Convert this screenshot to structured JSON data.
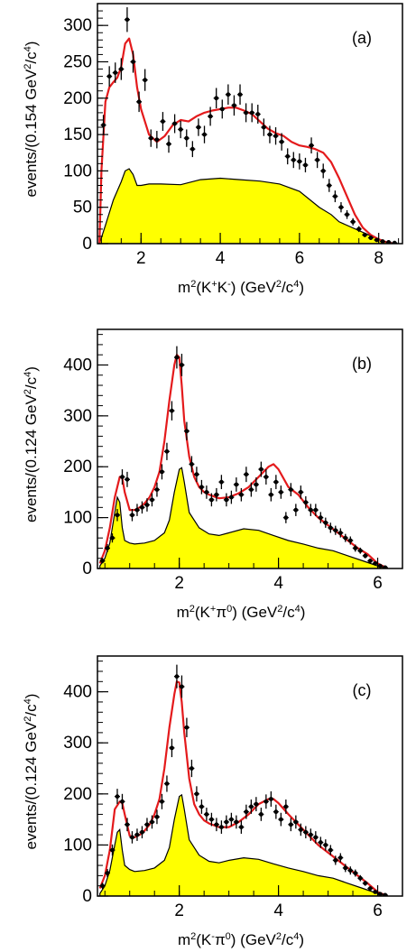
{
  "colors": {
    "fit": "#e41a1c",
    "background_fill": "#ffff00",
    "background_line": "#000000",
    "points": "#000000"
  },
  "chart_data": [
    {
      "type": "line",
      "panel": "(a)",
      "xlabel": {
        "base": "m",
        "sup1": "2",
        "mid": "(K",
        "sup2": "+",
        "mid2": "K",
        "sup3": "-",
        "end": ") (GeV",
        "sup4": "2",
        "end2": "/c",
        "sup5": "4",
        "close": ")"
      },
      "ylabel": {
        "base": "events/(0.154 GeV",
        "sup1": "2",
        "mid": "/c",
        "sup2": "4",
        "close": ")"
      },
      "xlim": [
        0.9,
        8.6
      ],
      "ylim": [
        0,
        330
      ],
      "xticks": [
        2,
        4,
        6,
        8
      ],
      "yticks": [
        0,
        50,
        100,
        150,
        200,
        250,
        300
      ],
      "data_points": {
        "x": [
          1.05,
          1.2,
          1.35,
          1.5,
          1.65,
          1.8,
          1.95,
          2.1,
          2.25,
          2.4,
          2.55,
          2.7,
          2.85,
          3.0,
          3.15,
          3.3,
          3.45,
          3.6,
          3.75,
          3.9,
          4.05,
          4.2,
          4.35,
          4.5,
          4.65,
          4.8,
          4.95,
          5.1,
          5.25,
          5.4,
          5.55,
          5.7,
          5.85,
          6.0,
          6.15,
          6.3,
          6.45,
          6.6,
          6.75,
          6.9,
          7.05,
          7.2,
          7.35,
          7.5,
          7.65,
          7.8,
          7.95,
          8.1,
          8.25,
          8.4
        ],
        "y": [
          163,
          230,
          235,
          240,
          308,
          250,
          195,
          225,
          145,
          143,
          168,
          137,
          165,
          157,
          145,
          130,
          160,
          150,
          175,
          200,
          185,
          205,
          190,
          205,
          180,
          180,
          178,
          160,
          150,
          148,
          140,
          120,
          115,
          113,
          108,
          135,
          115,
          100,
          80,
          65,
          50,
          40,
          30,
          20,
          12,
          8,
          5,
          3,
          2,
          1
        ],
        "err": [
          14,
          14,
          14,
          15,
          17,
          15,
          14,
          15,
          12,
          12,
          13,
          12,
          13,
          12,
          12,
          11,
          12,
          12,
          13,
          14,
          13,
          14,
          14,
          14,
          13,
          13,
          13,
          12,
          12,
          12,
          12,
          11,
          11,
          11,
          10,
          11,
          11,
          10,
          9,
          8,
          7,
          6,
          5,
          4,
          3,
          3,
          2,
          2,
          1,
          1
        ]
      },
      "fit": {
        "x": [
          0.95,
          1.0,
          1.1,
          1.2,
          1.3,
          1.4,
          1.5,
          1.6,
          1.7,
          1.8,
          1.9,
          2.0,
          2.2,
          2.4,
          2.6,
          2.8,
          3.0,
          3.2,
          3.4,
          3.6,
          3.8,
          4.0,
          4.2,
          4.4,
          4.6,
          4.8,
          5.0,
          5.2,
          5.4,
          5.6,
          5.8,
          6.0,
          6.2,
          6.4,
          6.6,
          6.8,
          7.0,
          7.2,
          7.4,
          7.6,
          7.8,
          8.0,
          8.2,
          8.4
        ],
        "y": [
          0,
          100,
          195,
          215,
          222,
          228,
          243,
          275,
          282,
          260,
          215,
          185,
          150,
          140,
          148,
          163,
          170,
          168,
          175,
          180,
          183,
          185,
          187,
          187,
          183,
          178,
          168,
          158,
          152,
          148,
          140,
          135,
          133,
          130,
          125,
          112,
          90,
          65,
          40,
          22,
          12,
          6,
          2,
          0
        ]
      },
      "background": {
        "x": [
          0.95,
          1.1,
          1.3,
          1.5,
          1.6,
          1.7,
          1.8,
          1.9,
          2.0,
          2.2,
          2.5,
          3.0,
          3.5,
          4.0,
          4.5,
          5.0,
          5.5,
          6.0,
          6.5,
          6.8,
          7.0,
          7.5,
          8.0,
          8.2,
          8.4
        ],
        "y": [
          0,
          25,
          60,
          85,
          100,
          103,
          95,
          80,
          80,
          82,
          82,
          81,
          88,
          90,
          88,
          86,
          82,
          72,
          50,
          40,
          30,
          18,
          6,
          2,
          0
        ]
      }
    },
    {
      "type": "line",
      "panel": "(b)",
      "xlabel": {
        "base": "m",
        "sup1": "2",
        "mid": "(K",
        "sup2": "+",
        "mid2": "π",
        "sup3": "0",
        "end": ") (GeV",
        "sup4": "2",
        "end2": "/c",
        "sup5": "4",
        "close": ")"
      },
      "ylabel": {
        "base": "events/(0.124 GeV",
        "sup1": "2",
        "mid": "/c",
        "sup2": "4",
        "close": ")"
      },
      "xlim": [
        0.35,
        6.5
      ],
      "ylim": [
        0,
        470
      ],
      "xticks": [
        2,
        4,
        6
      ],
      "yticks": [
        0,
        100,
        200,
        300,
        400
      ],
      "data_points": {
        "x": [
          0.45,
          0.55,
          0.65,
          0.75,
          0.85,
          0.95,
          1.05,
          1.15,
          1.25,
          1.35,
          1.45,
          1.55,
          1.65,
          1.75,
          1.85,
          1.95,
          2.05,
          2.15,
          2.25,
          2.35,
          2.45,
          2.55,
          2.65,
          2.75,
          2.85,
          2.95,
          3.05,
          3.15,
          3.25,
          3.35,
          3.45,
          3.55,
          3.65,
          3.75,
          3.85,
          3.95,
          4.05,
          4.15,
          4.25,
          4.35,
          4.45,
          4.55,
          4.65,
          4.75,
          4.85,
          4.95,
          5.05,
          5.15,
          5.25,
          5.35,
          5.45,
          5.55,
          5.65,
          5.75,
          5.85,
          5.95,
          6.05,
          6.15
        ],
        "y": [
          15,
          40,
          60,
          105,
          180,
          175,
          105,
          115,
          120,
          125,
          135,
          155,
          190,
          230,
          310,
          415,
          400,
          270,
          205,
          185,
          160,
          150,
          135,
          145,
          170,
          135,
          140,
          165,
          145,
          185,
          155,
          165,
          195,
          180,
          145,
          170,
          150,
          100,
          155,
          115,
          150,
          130,
          115,
          115,
          100,
          90,
          80,
          75,
          70,
          60,
          55,
          40,
          35,
          25,
          15,
          10,
          5,
          2
        ],
        "err": [
          5,
          8,
          9,
          12,
          15,
          15,
          12,
          12,
          12,
          13,
          13,
          14,
          15,
          17,
          19,
          22,
          22,
          18,
          16,
          15,
          14,
          13,
          13,
          13,
          14,
          13,
          13,
          14,
          13,
          15,
          14,
          14,
          15,
          15,
          13,
          14,
          13,
          11,
          13,
          12,
          13,
          12,
          12,
          12,
          11,
          10,
          10,
          9,
          9,
          8,
          8,
          7,
          6,
          5,
          4,
          3,
          2,
          1
        ]
      },
      "fit": {
        "x": [
          0.4,
          0.5,
          0.6,
          0.7,
          0.8,
          0.85,
          0.9,
          1.0,
          1.1,
          1.2,
          1.3,
          1.4,
          1.5,
          1.6,
          1.7,
          1.8,
          1.9,
          1.95,
          2.0,
          2.05,
          2.1,
          2.2,
          2.3,
          2.4,
          2.5,
          2.6,
          2.8,
          3.0,
          3.2,
          3.4,
          3.6,
          3.8,
          3.9,
          4.0,
          4.2,
          4.4,
          4.6,
          4.8,
          5.0,
          5.2,
          5.4,
          5.6,
          5.8,
          6.0,
          6.2
        ],
        "y": [
          10,
          35,
          80,
          140,
          180,
          178,
          150,
          115,
          115,
          120,
          128,
          140,
          160,
          190,
          250,
          330,
          400,
          420,
          415,
          360,
          290,
          220,
          180,
          160,
          150,
          145,
          138,
          140,
          148,
          160,
          180,
          200,
          205,
          195,
          160,
          145,
          120,
          100,
          85,
          70,
          55,
          40,
          28,
          10,
          0
        ]
      },
      "background": {
        "x": [
          0.4,
          0.5,
          0.6,
          0.7,
          0.75,
          0.8,
          0.85,
          0.9,
          1.0,
          1.1,
          1.3,
          1.5,
          1.7,
          1.8,
          1.9,
          2.0,
          2.05,
          2.1,
          2.2,
          2.4,
          2.6,
          2.8,
          3.0,
          3.3,
          3.6,
          3.9,
          4.2,
          4.5,
          4.8,
          5.1,
          5.4,
          5.7,
          6.0,
          6.2
        ],
        "y": [
          5,
          20,
          50,
          110,
          140,
          130,
          80,
          55,
          50,
          48,
          50,
          55,
          70,
          95,
          150,
          195,
          198,
          170,
          110,
          80,
          68,
          65,
          70,
          78,
          75,
          65,
          55,
          48,
          40,
          35,
          25,
          15,
          5,
          0
        ]
      }
    },
    {
      "type": "line",
      "panel": "(c)",
      "xlabel": {
        "base": "m",
        "sup1": "2",
        "mid": "(K",
        "sup2": "-",
        "mid2": "π",
        "sup3": "0",
        "end": ") (GeV",
        "sup4": "2",
        "end2": "/c",
        "sup5": "4",
        "close": ")"
      },
      "ylabel": {
        "base": "events/(0.124 GeV",
        "sup1": "2",
        "mid": "/c",
        "sup2": "4",
        "close": ")"
      },
      "xlim": [
        0.35,
        6.5
      ],
      "ylim": [
        0,
        470
      ],
      "xticks": [
        2,
        4,
        6
      ],
      "yticks": [
        0,
        100,
        200,
        300,
        400
      ],
      "data_points": {
        "x": [
          0.45,
          0.55,
          0.65,
          0.75,
          0.85,
          0.95,
          1.05,
          1.15,
          1.25,
          1.35,
          1.45,
          1.55,
          1.65,
          1.75,
          1.85,
          1.95,
          2.05,
          2.15,
          2.25,
          2.35,
          2.45,
          2.55,
          2.65,
          2.75,
          2.85,
          2.95,
          3.05,
          3.15,
          3.25,
          3.35,
          3.45,
          3.55,
          3.65,
          3.75,
          3.85,
          3.95,
          4.05,
          4.15,
          4.25,
          4.35,
          4.45,
          4.55,
          4.65,
          4.75,
          4.85,
          4.95,
          5.05,
          5.15,
          5.25,
          5.35,
          5.45,
          5.55,
          5.65,
          5.75,
          5.85,
          5.95,
          6.05,
          6.15
        ],
        "y": [
          20,
          45,
          90,
          195,
          185,
          140,
          115,
          120,
          125,
          140,
          145,
          155,
          185,
          220,
          290,
          430,
          410,
          330,
          250,
          200,
          175,
          160,
          150,
          140,
          135,
          145,
          150,
          145,
          135,
          165,
          175,
          180,
          160,
          185,
          190,
          165,
          150,
          175,
          140,
          145,
          130,
          125,
          120,
          115,
          105,
          100,
          90,
          70,
          75,
          55,
          50,
          45,
          35,
          25,
          15,
          8,
          4,
          2
        ],
        "err": [
          6,
          8,
          11,
          15,
          15,
          13,
          12,
          12,
          12,
          13,
          13,
          14,
          15,
          16,
          18,
          23,
          22,
          19,
          17,
          15,
          14,
          13,
          13,
          13,
          13,
          13,
          13,
          13,
          13,
          14,
          14,
          14,
          13,
          14,
          15,
          14,
          13,
          14,
          13,
          13,
          12,
          12,
          12,
          12,
          11,
          11,
          10,
          9,
          9,
          8,
          8,
          7,
          6,
          5,
          4,
          3,
          2,
          1
        ]
      },
      "fit": {
        "x": [
          0.4,
          0.5,
          0.6,
          0.7,
          0.8,
          0.85,
          0.9,
          1.0,
          1.1,
          1.2,
          1.3,
          1.4,
          1.5,
          1.6,
          1.7,
          1.8,
          1.9,
          1.95,
          2.0,
          2.05,
          2.1,
          2.2,
          2.3,
          2.4,
          2.5,
          2.6,
          2.8,
          3.0,
          3.2,
          3.4,
          3.6,
          3.8,
          3.9,
          4.0,
          4.2,
          4.4,
          4.6,
          4.8,
          5.0,
          5.2,
          5.4,
          5.6,
          5.8,
          6.0,
          6.2
        ],
        "y": [
          15,
          40,
          90,
          170,
          185,
          182,
          160,
          118,
          115,
          120,
          128,
          140,
          160,
          190,
          250,
          330,
          395,
          420,
          418,
          380,
          320,
          230,
          180,
          160,
          148,
          142,
          135,
          135,
          145,
          160,
          180,
          190,
          190,
          182,
          160,
          140,
          120,
          100,
          85,
          70,
          55,
          40,
          25,
          8,
          0
        ]
      },
      "background": {
        "x": [
          0.4,
          0.5,
          0.6,
          0.7,
          0.75,
          0.8,
          0.85,
          0.9,
          1.0,
          1.1,
          1.3,
          1.5,
          1.7,
          1.8,
          1.9,
          2.0,
          2.05,
          2.1,
          2.2,
          2.4,
          2.6,
          2.8,
          3.0,
          3.3,
          3.6,
          3.9,
          4.2,
          4.5,
          4.8,
          5.1,
          5.4,
          5.7,
          6.0,
          6.2
        ],
        "y": [
          5,
          20,
          50,
          100,
          125,
          130,
          90,
          60,
          52,
          48,
          50,
          55,
          70,
          95,
          150,
          195,
          198,
          170,
          110,
          80,
          68,
          65,
          70,
          75,
          72,
          63,
          55,
          48,
          40,
          35,
          25,
          15,
          5,
          0
        ]
      }
    }
  ]
}
